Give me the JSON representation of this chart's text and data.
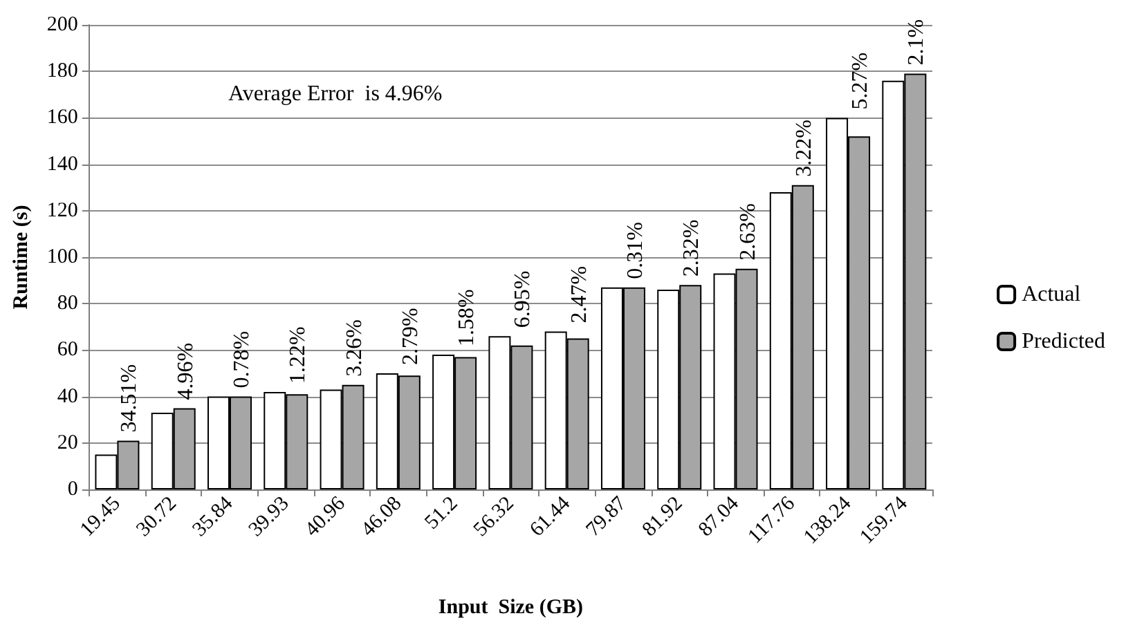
{
  "chart_data": {
    "type": "bar",
    "xlabel": "Input  Size (GB)",
    "ylabel": "Runtime (s)",
    "categories": [
      "19.45",
      "30.72",
      "35.84",
      "39.93",
      "40.96",
      "46.08",
      "51.2",
      "56.32",
      "61.44",
      "79.87",
      "81.92",
      "87.04",
      "117.76",
      "138.24",
      "159.74"
    ],
    "series": [
      {
        "name": "Actual",
        "color": "#ffffff",
        "values": [
          15,
          33,
          40,
          42,
          43,
          50,
          58,
          66,
          68,
          87,
          86,
          93,
          128,
          160,
          176
        ]
      },
      {
        "name": "Predicted",
        "color": "#a6a6a6",
        "values": [
          21,
          35,
          40,
          41,
          45,
          49,
          57,
          62,
          65,
          87,
          88,
          95,
          131,
          152,
          179
        ]
      }
    ],
    "ylim": [
      0,
      200
    ],
    "yticks": [
      0,
      20,
      40,
      60,
      80,
      100,
      120,
      140,
      160,
      180,
      200
    ],
    "grid": "y",
    "legend": "right",
    "annotations": [
      "Average Error  is 4.96%",
      {
        "text": "34.51%",
        "x": "19.45",
        "y": 21
      },
      {
        "text": "4.96%",
        "x": "30.72",
        "y": 35
      },
      {
        "text": "0.78%",
        "x": "35.84",
        "y": 40
      },
      {
        "text": "1.22%",
        "x": "39.93",
        "y": 42
      },
      {
        "text": "3.26%",
        "x": "40.96",
        "y": 45
      },
      {
        "text": "2.79%",
        "x": "46.08",
        "y": 50
      },
      {
        "text": "1.58%",
        "x": "51.2",
        "y": 58
      },
      {
        "text": "6.95%",
        "x": "56.32",
        "y": 66
      },
      {
        "text": "2.47%",
        "x": "61.44",
        "y": 68
      },
      {
        "text": "0.31%",
        "x": "79.87",
        "y": 87
      },
      {
        "text": "2.32%",
        "x": "81.92",
        "y": 88
      },
      {
        "text": "2.63%",
        "x": "87.04",
        "y": 95
      },
      {
        "text": "3.22%",
        "x": "117.76",
        "y": 131
      },
      {
        "text": "5.27%",
        "x": "138.24",
        "y": 160
      },
      {
        "text": "2.1%",
        "x": "159.74",
        "y": 179
      }
    ]
  }
}
